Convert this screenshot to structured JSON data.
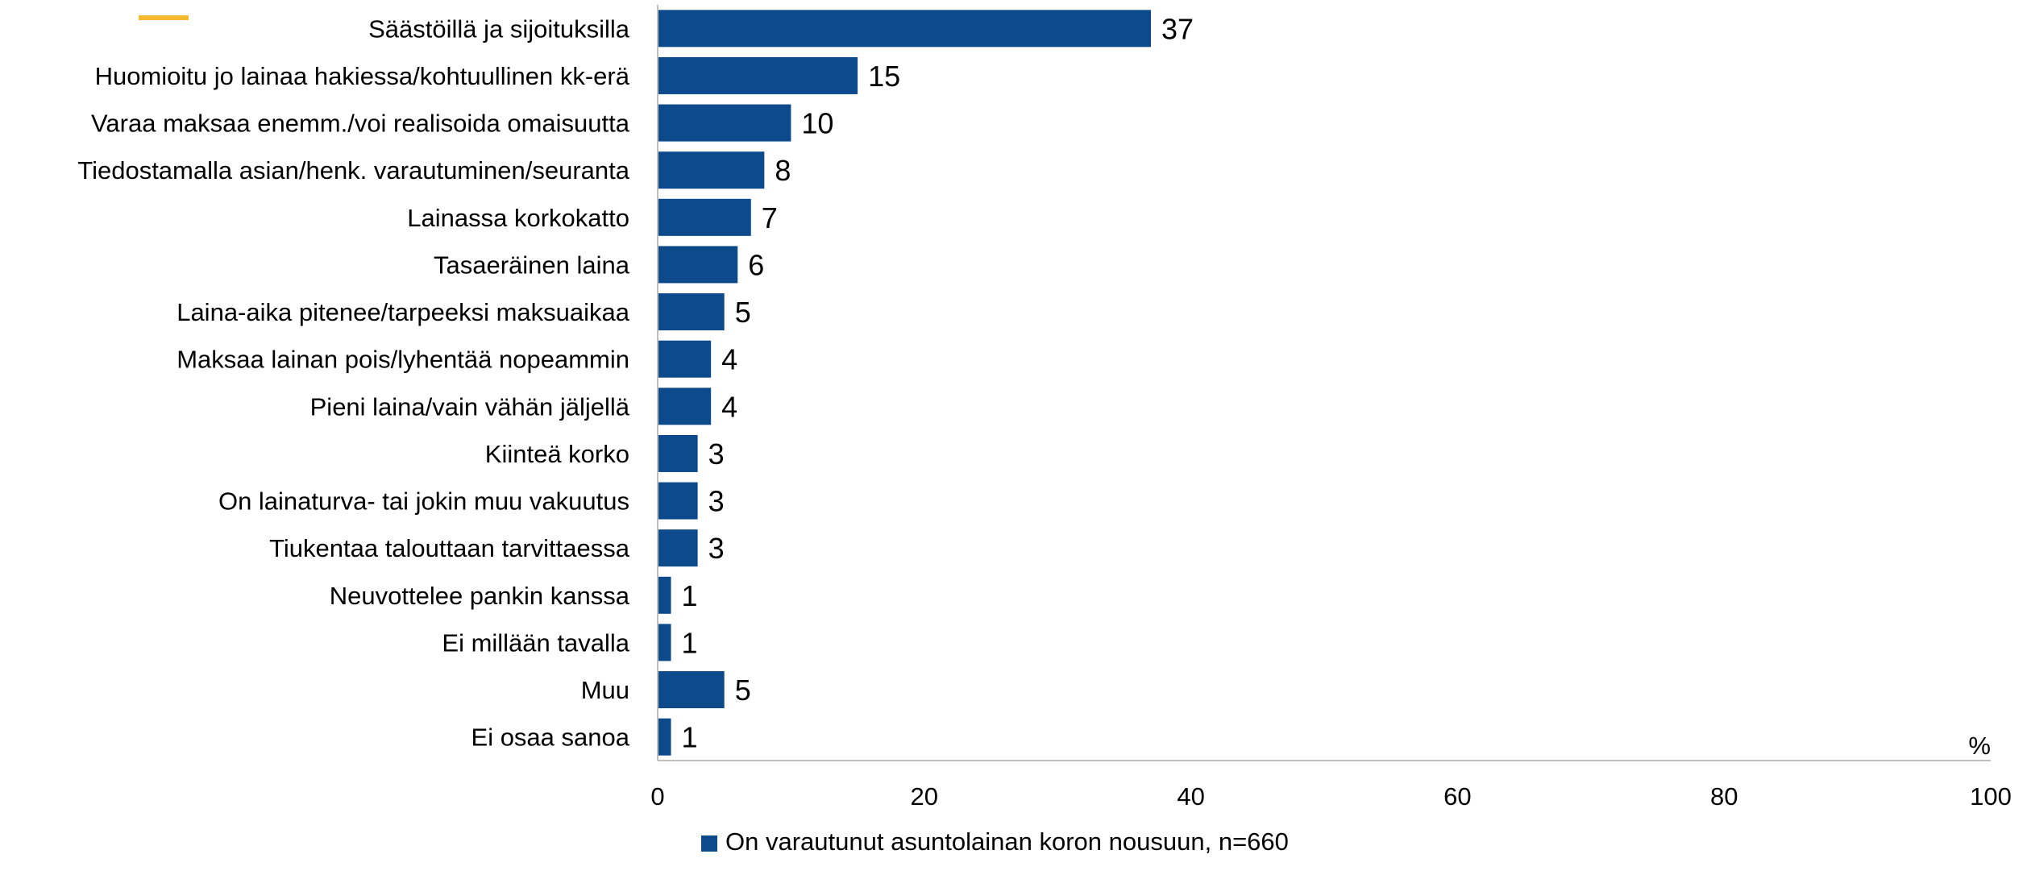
{
  "chart_data": {
    "type": "bar",
    "orientation": "horizontal",
    "categories": [
      "Säästöillä ja sijoituksilla",
      "Huomioitu jo lainaa hakiessa/kohtuullinen kk-erä",
      "Varaa maksaa enemm./voi realisoida omaisuutta",
      "Tiedostamalla asian/henk. varautuminen/seuranta",
      "Lainassa korkokatto",
      "Tasaeräinen laina",
      "Laina-aika pitenee/tarpeeksi maksuaikaa",
      "Maksaa lainan pois/lyhentää nopeammin",
      "Pieni laina/vain vähän jäljellä",
      "Kiinteä korko",
      "On lainaturva- tai jokin muu vakuutus",
      "Tiukentaa talouttaan tarvittaessa",
      "Neuvottelee pankin kanssa",
      "Ei millään tavalla",
      "Muu",
      "Ei osaa sanoa"
    ],
    "series": [
      {
        "name": "On varautunut asuntolainan koron nousuun, n=660",
        "color": "#0c4a8c",
        "values": [
          37,
          15,
          10,
          8,
          7,
          6,
          5,
          4,
          4,
          3,
          3,
          3,
          1,
          1,
          5,
          1
        ]
      }
    ],
    "xlim": [
      0,
      100
    ],
    "xticks": [
      0,
      20,
      40,
      60,
      80,
      100
    ],
    "xunit": "%",
    "grid": false,
    "legend_position": "bottom",
    "legend_marker_color_top": "#f5b82e"
  }
}
